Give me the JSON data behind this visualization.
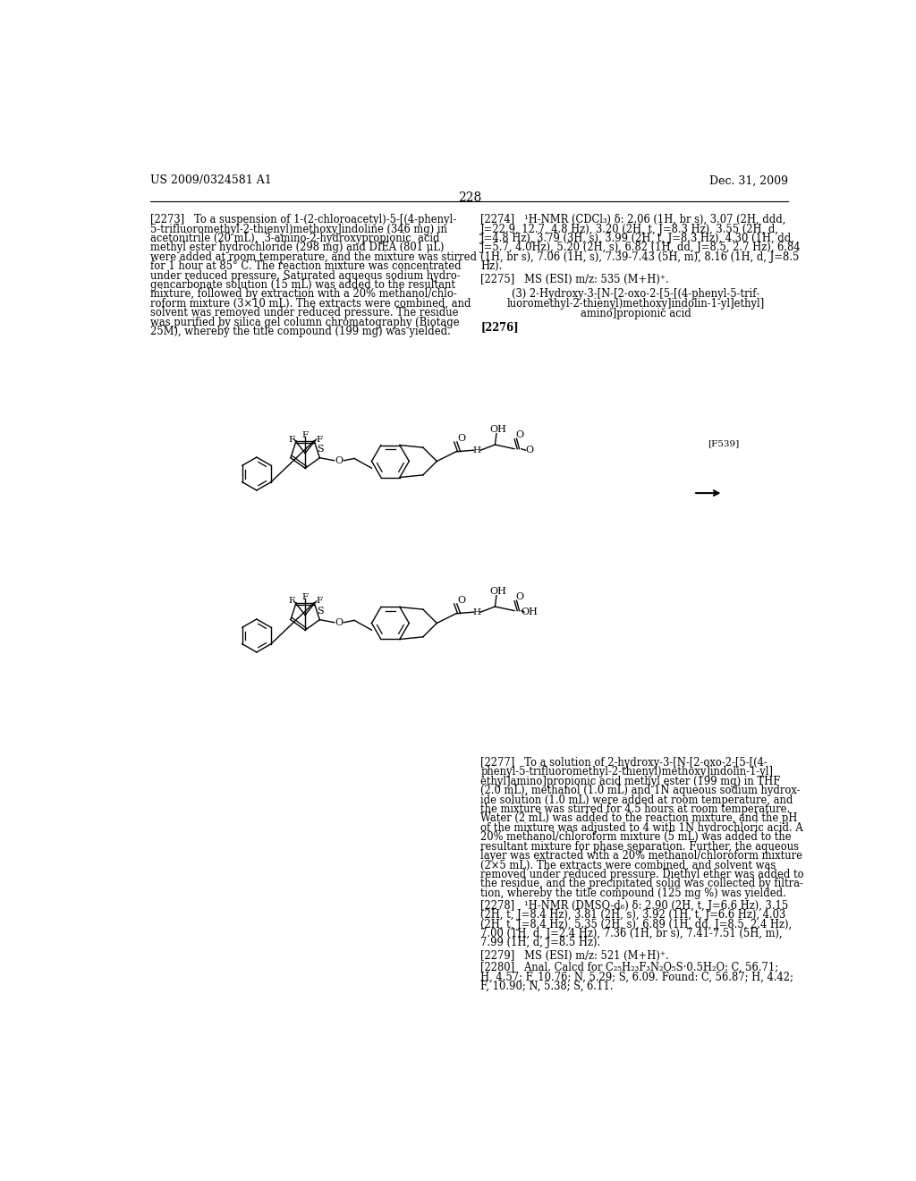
{
  "page_header_left": "US 2009/0324581 A1",
  "page_header_right": "Dec. 31, 2009",
  "page_number": "228",
  "background_color": "#ffffff",
  "text_color": "#000000",
  "label_f539": "[F539]",
  "lc_lines": [
    "[2273]   To a suspension of 1-(2-chloroacetyl)-5-[(4-phenyl-",
    "5-trifluoromethyl-2-thienyl)methoxy]indoline (346 mg) in",
    "acetonitrile (20 mL),  3-amino-2-hydroxypropionic  acid",
    "methyl ester hydrochloride (298 mg) and DIEA (801 μL)",
    "were added at room temperature, and the mixture was stirred",
    "for 1 hour at 85° C. The reaction mixture was concentrated",
    "under reduced pressure. Saturated aqueous sodium hydro-",
    "gencarbonate solution (15 mL) was added to the resultant",
    "mixture, followed by extraction with a 20% methanol/chlo-",
    "roform mixture (3×10 mL). The extracts were combined, and",
    "solvent was removed under reduced pressure. The residue",
    "was purified by silica gel column chromatography (Biotage",
    "25M), whereby the title compound (199 mg) was yielded."
  ],
  "rc_lines_2274": [
    "[2274]   ¹H-NMR (CDCl₃) δ: 2.06 (1H, br s), 3.07 (2H, ddd,",
    "J=22.9, 12.7, 4.8 Hz), 3.20 (2H, t, J=8.3 Hz), 3.55 (2H, d,",
    "J=4.8 Hz), 3.79 (3H, s), 3.99 (2H, t, J=8.3 Hz), 4.30 (1H, dd,",
    "J=5.7, 4.0Hz), 5.20 (2H, s), 6.82 (1H, dd, J=8.5, 2.7 Hz), 6.84",
    "(1H, br s), 7.06 (1H, s), 7.39-7.43 (5H, m), 8.16 (1H, d, J=8.5",
    "Hz)."
  ],
  "line_2275": "[2275]   MS (ESI) m/z: 535 (M+H)⁺.",
  "title_lines": [
    "(3) 2-Hydroxy-3-[N-[2-oxo-2-[5-[(4-phenyl-5-trif-",
    "luoromethyl-2-thienyl)methoxy]indolin-1-yl]ethyl]",
    "amino]propionic acid"
  ],
  "line_2276": "[2276]",
  "para_2277_lines": [
    "[2277]   To a solution of 2-hydroxy-3-[N-[2-oxo-2-[5-[(4-",
    "phenyl-5-trifluoromethyl-2-thienyl)methoxy]indolin-1-yl]",
    "ethyl]amino]propionic acid methyl ester (199 mg) in THF",
    "(2.0 mL), methanol (1.0 mL) and 1N aqueous sodium hydrox-",
    "ide solution (1.0 mL) were added at room temperature, and",
    "the mixture was stirred for 4.5 hours at room temperature.",
    "Water (2 mL) was added to the reaction mixture, and the pH",
    "of the mixture was adjusted to 4 with 1N hydrochloric acid. A",
    "20% methanol/chloroform mixture (5 mL) was added to the",
    "resultant mixture for phase separation. Further, the aqueous",
    "layer was extracted with a 20% methanol/chloroform mixture",
    "(2×5 mL). The extracts were combined, and solvent was",
    "removed under reduced pressure. Diethyl ether was added to",
    "the residue, and the precipitated solid was collected by filtra-",
    "tion, whereby the title compound (125 mg %) was yielded."
  ],
  "para_2278_lines": [
    "[2278]   ¹H-NMR (DMSO-d₆) δ: 2.90 (2H, t, J=6.6 Hz), 3.15",
    "(2H, t, J=8.4 Hz), 3.81 (2H, s), 3.92 (1H, t, J=6.6 Hz), 4.03",
    "(2H, t, J=8.4 Hz), 5.35 (2H, s), 6.89 (1H, dd, J=8.5, 2.4 Hz),",
    "7.00 (1H, d, J=2.4 Hz), 7.36 (1H, br s), 7.41-7.51 (5H, m),",
    "7.99 (1H, d, J=8.5 Hz)."
  ],
  "line_2279": "[2279]   MS (ESI) m/z: 521 (M+H)⁺.",
  "para_2280_lines": [
    "[2280]   Anal. Calcd for C₂₅H₂₃F₃N₂O₅S·0.5H₂O: C, 56.71;",
    "H, 4.57; F, 10.76; N, 5.29; S, 6.09. Found: C, 56.87; H, 4.42;",
    "F, 10.90; N, 5.38; S, 6.11."
  ]
}
